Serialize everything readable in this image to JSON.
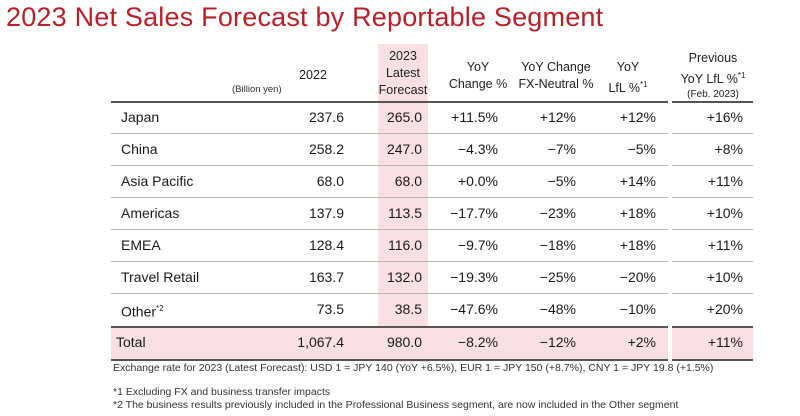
{
  "title": "2023 Net Sales Forecast by Reportable Segment",
  "unit": "(Billion yen)",
  "headers": {
    "y2022": "2022",
    "latest": [
      "2023",
      "Latest",
      "Forecast"
    ],
    "yoy": [
      "YoY",
      "Change %"
    ],
    "fxn": [
      "YoY Change",
      "FX-Neutral %"
    ],
    "lfl": [
      "YoY",
      "LfL %",
      "*1"
    ],
    "prev": [
      "Previous",
      "YoY LfL %",
      "*1",
      "(Feb. 2023)"
    ]
  },
  "rows": [
    {
      "label": "Japan",
      "sup": "",
      "y2022": "237.6",
      "latest": "265.0",
      "yoy": "+11.5%",
      "fxn": "+12%",
      "lfl": "+12%",
      "prev": "+16%"
    },
    {
      "label": "China",
      "sup": "",
      "y2022": "258.2",
      "latest": "247.0",
      "yoy": "−4.3%",
      "fxn": "−7%",
      "lfl": "−5%",
      "prev": "+8%"
    },
    {
      "label": "Asia Pacific",
      "sup": "",
      "y2022": "68.0",
      "latest": "68.0",
      "yoy": "+0.0%",
      "fxn": "−5%",
      "lfl": "+14%",
      "prev": "+11%"
    },
    {
      "label": "Americas",
      "sup": "",
      "y2022": "137.9",
      "latest": "113.5",
      "yoy": "−17.7%",
      "fxn": "−23%",
      "lfl": "+18%",
      "prev": "+10%"
    },
    {
      "label": "EMEA",
      "sup": "",
      "y2022": "128.4",
      "latest": "116.0",
      "yoy": "−9.7%",
      "fxn": "−18%",
      "lfl": "+18%",
      "prev": "+11%"
    },
    {
      "label": "Travel Retail",
      "sup": "",
      "y2022": "163.7",
      "latest": "132.0",
      "yoy": "−19.3%",
      "fxn": "−25%",
      "lfl": "−20%",
      "prev": "+10%"
    },
    {
      "label": "Other",
      "sup": "*2",
      "y2022": "73.5",
      "latest": "38.5",
      "yoy": "−47.6%",
      "fxn": "−48%",
      "lfl": "−10%",
      "prev": "+20%"
    }
  ],
  "total": {
    "label": "Total",
    "y2022": "1,067.4",
    "latest": "980.0",
    "yoy": "−8.2%",
    "fxn": "−12%",
    "lfl": "+2%",
    "prev": "+11%"
  },
  "notes": {
    "exchange": "Exchange rate for 2023 (Latest Forecast): USD 1 = JPY 140 (YoY +6.5%), EUR 1 = JPY 150 (+8.7%), CNY 1 = JPY 19.8 (+1.5%)",
    "n1": "*1 Excluding FX and business transfer impacts",
    "n2": "*2 The business results previously included in the Professional Business segment, are now included in the Other segment"
  },
  "colors": {
    "title": "#b8202c",
    "highlight": "#f8dfe2"
  }
}
